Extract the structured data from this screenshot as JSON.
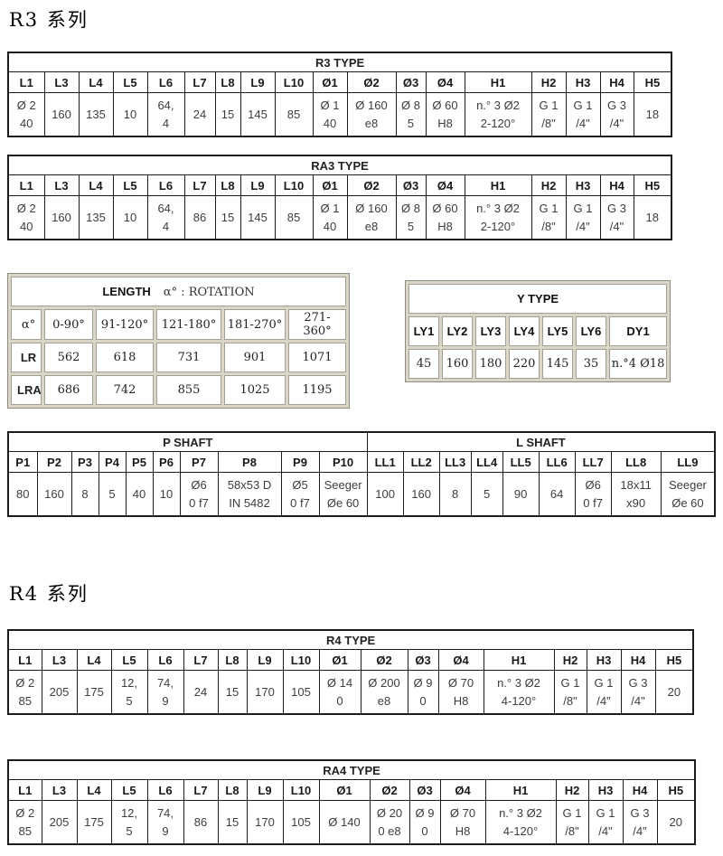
{
  "headings": {
    "r3": "R3 系列",
    "r4": "R4 系列"
  },
  "r3_type": {
    "title": "R3 TYPE",
    "headers": [
      "L1",
      "L3",
      "L4",
      "L5",
      "L6",
      "L7",
      "L8",
      "L9",
      "L10",
      "Ø1",
      "Ø2",
      "Ø3",
      "Ø4",
      "H1",
      "H2",
      "H3",
      "H4",
      "H5"
    ],
    "values": [
      "Ø 2\n40",
      "160",
      "135",
      "10",
      "64,\n4",
      "24",
      "15",
      "145",
      "85",
      "Ø 1\n40",
      "Ø 160\ne8",
      "Ø 8\n5",
      "Ø 60\nH8",
      "n.° 3 Ø2\n2-120°",
      "G 1\n/8\"",
      "G 1\n/4\"",
      "G 3\n/4\"",
      "18"
    ]
  },
  "ra3_type": {
    "title": "RA3 TYPE",
    "headers": [
      "L1",
      "L3",
      "L4",
      "L5",
      "L6",
      "L7",
      "L8",
      "L9",
      "L10",
      "Ø1",
      "Ø2",
      "Ø3",
      "Ø4",
      "H1",
      "H2",
      "H3",
      "H4",
      "H5"
    ],
    "values": [
      "Ø 2\n40",
      "160",
      "135",
      "10",
      "64,\n4",
      "86",
      "15",
      "145",
      "85",
      "Ø 1\n40",
      "Ø 160\ne8",
      "Ø 8\n5",
      "Ø 60\nH8",
      "n.° 3 Ø2\n2-120°",
      "G 1\n/8\"",
      "G 1\n/4\"",
      "G 3\n/4\"",
      "18"
    ]
  },
  "length_rotation": {
    "title_main": "LENGTH",
    "title_rest": "α° :  ROTATION",
    "col_headers": [
      "α°",
      "0-90°",
      "91-120°",
      "121-180°",
      "181-270°",
      "271-360°"
    ],
    "rows": [
      {
        "label": "LR",
        "values": [
          "562",
          "618",
          "731",
          "901",
          "1071"
        ]
      },
      {
        "label": "LRA",
        "values": [
          "686",
          "742",
          "855",
          "1025",
          "1195"
        ]
      }
    ]
  },
  "y_type": {
    "title": "Y TYPE",
    "headers": [
      "LY1",
      "LY2",
      "LY3",
      "LY4",
      "LY5",
      "LY6",
      "DY1"
    ],
    "values": [
      "45",
      "160",
      "180",
      "220",
      "145",
      "35",
      "n.°4 Ø18"
    ]
  },
  "shaft": {
    "p_title": "P SHAFT",
    "l_title": "L SHAFT",
    "p_headers": [
      "P1",
      "P2",
      "P3",
      "P4",
      "P5",
      "P6",
      "P7",
      "P8",
      "P9",
      "P10"
    ],
    "p_values": [
      "80",
      "160",
      "8",
      "5",
      "40",
      "10",
      "Ø6\n0 f7",
      "58x53 D\nIN 5482",
      "Ø5\n0 f7",
      "Seeger\nØe 60"
    ],
    "l_headers": [
      "LL1",
      "LL2",
      "LL3",
      "LL4",
      "LL5",
      "LL6",
      "LL7",
      "LL8",
      "LL9"
    ],
    "l_values": [
      "100",
      "160",
      "8",
      "5",
      "90",
      "64",
      "Ø6\n0 f7",
      "18x11\nx90",
      "Seeger\nØe 60"
    ]
  },
  "r4_type": {
    "title": "R4 TYPE",
    "headers": [
      "L1",
      "L3",
      "L4",
      "L5",
      "L6",
      "L7",
      "L8",
      "L9",
      "L10",
      "Ø1",
      "Ø2",
      "Ø3",
      "Ø4",
      "H1",
      "H2",
      "H3",
      "H4",
      "H5"
    ],
    "values": [
      "Ø 2\n85",
      "205",
      "175",
      "12,\n5",
      "74,\n9",
      "24",
      "15",
      "170",
      "105",
      "Ø 14\n0",
      "Ø 200\ne8",
      "Ø 9\n0",
      "Ø 70\nH8",
      "n.° 3 Ø2\n4-120°",
      "G 1\n/8\"",
      "G 1\n/4\"",
      "G 3\n/4\"",
      "20"
    ]
  },
  "ra4_type": {
    "title": "RA4 TYPE",
    "headers": [
      "L1",
      "L3",
      "L4",
      "L5",
      "L6",
      "L7",
      "L8",
      "L9",
      "L10",
      "Ø1",
      "Ø2",
      "Ø3",
      "Ø4",
      "H1",
      "H2",
      "H3",
      "H4",
      "H5"
    ],
    "values": [
      "Ø 2\n85",
      "205",
      "175",
      "12,\n5",
      "74,\n9",
      "86",
      "15",
      "170",
      "105",
      "Ø 140",
      "Ø 20\n0 e8",
      "Ø 9\n0",
      "Ø 70\nH8",
      "n.° 3 Ø2\n4-120°",
      "G 1\n/8\"",
      "G 1\n/4\"",
      "G 3\n/4\"",
      "20"
    ]
  }
}
